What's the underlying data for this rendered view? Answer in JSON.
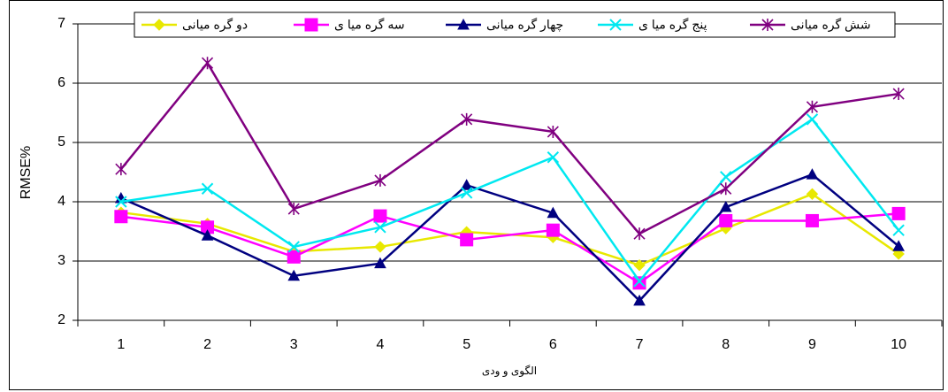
{
  "chart_data": {
    "type": "line",
    "x_label": "الگوی و ودی",
    "y_label": "RMSE%",
    "categories": [
      "1",
      "2",
      "3",
      "4",
      "5",
      "6",
      "7",
      "8",
      "9",
      "10"
    ],
    "ylim": [
      2,
      7
    ],
    "yticks": [
      2,
      3,
      4,
      5,
      6,
      7
    ],
    "grid": true,
    "legend": "top",
    "series": [
      {
        "name": "دو گره میانی",
        "color": "#e8e800",
        "marker": "diamond",
        "values": [
          3.82,
          3.63,
          3.16,
          3.24,
          3.49,
          3.4,
          2.93,
          3.55,
          4.13,
          3.12
        ]
      },
      {
        "name": "سه گره میا ی",
        "color": "#ff00ff",
        "marker": "square",
        "values": [
          3.75,
          3.57,
          3.07,
          3.76,
          3.36,
          3.52,
          2.63,
          3.68,
          3.68,
          3.8
        ]
      },
      {
        "name": "چهار گره میانی",
        "color": "#000080",
        "marker": "triangle",
        "values": [
          4.06,
          3.43,
          2.75,
          2.96,
          4.28,
          3.81,
          2.33,
          3.91,
          4.46,
          3.25
        ]
      },
      {
        "name": "پنج گره میا ی",
        "color": "#00e8f0",
        "marker": "x",
        "values": [
          4.0,
          4.22,
          3.24,
          3.57,
          4.15,
          4.75,
          2.66,
          4.42,
          5.39,
          3.52
        ]
      },
      {
        "name": "شش گره میانی",
        "color": "#800080",
        "marker": "star",
        "values": [
          4.55,
          6.34,
          3.88,
          4.36,
          5.39,
          5.18,
          3.46,
          4.22,
          5.6,
          5.82
        ]
      }
    ]
  }
}
